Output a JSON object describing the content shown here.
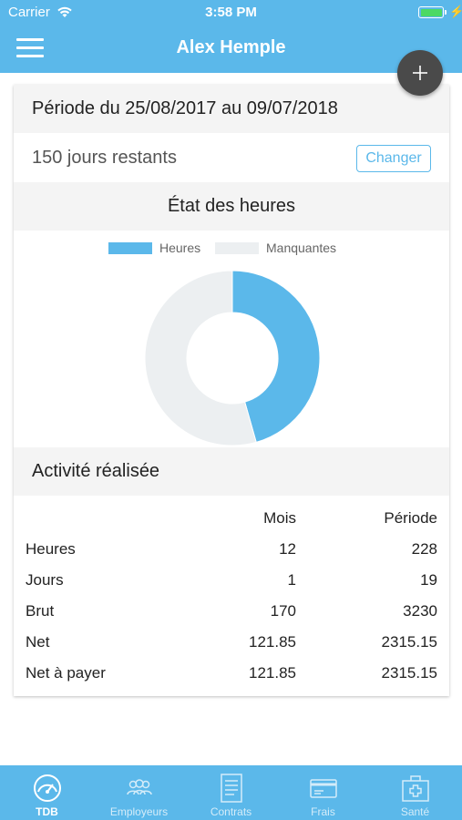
{
  "status_bar": {
    "carrier": "Carrier",
    "time": "3:58 PM"
  },
  "nav": {
    "title": "Alex Hemple",
    "menu_icon": "hamburger-icon",
    "add_icon": "plus-icon"
  },
  "card": {
    "period_label": "Période du 25/08/2017 au 09/07/2018",
    "remaining_label": "150 jours restants",
    "change_button": "Changer",
    "hours_title": "État des heures",
    "activity_title": "Activité réalisée"
  },
  "chart_data": {
    "type": "pie",
    "title": "État des heures",
    "legend_position": "top",
    "series": [
      {
        "name": "Heures",
        "value": 228,
        "color": "#5bb8ea"
      },
      {
        "name": "Manquantes",
        "value": 272,
        "color": "#eceff1"
      }
    ]
  },
  "activity_table": {
    "columns": [
      "",
      "Mois",
      "Période"
    ],
    "rows": [
      {
        "label": "Heures",
        "mois": "12",
        "periode": "228"
      },
      {
        "label": "Jours",
        "mois": "1",
        "periode": "19"
      },
      {
        "label": "Brut",
        "mois": "170",
        "periode": "3230"
      },
      {
        "label": "Net",
        "mois": "121.85",
        "periode": "2315.15"
      },
      {
        "label": "Net à payer",
        "mois": "121.85",
        "periode": "2315.15"
      }
    ]
  },
  "tabs": [
    {
      "label": "TDB",
      "icon": "dashboard-gauge-icon",
      "active": true
    },
    {
      "label": "Employeurs",
      "icon": "people-icon",
      "active": false
    },
    {
      "label": "Contrats",
      "icon": "document-icon",
      "active": false
    },
    {
      "label": "Frais",
      "icon": "credit-card-icon",
      "active": false
    },
    {
      "label": "Santé",
      "icon": "medical-kit-icon",
      "active": false
    }
  ],
  "colors": {
    "accent": "#5bb8ea",
    "missing": "#eceff1",
    "fab": "#4a4a4a"
  }
}
